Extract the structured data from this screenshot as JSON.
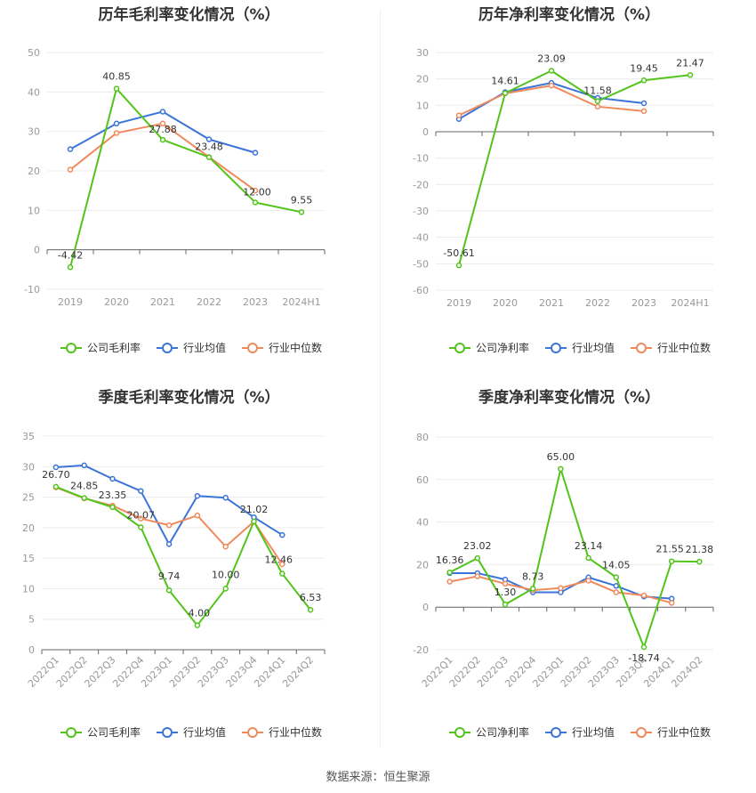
{
  "source_note": "数据来源：恒生聚源",
  "chart_data": [
    {
      "type": "line",
      "title": "历年毛利率变化情况（%）",
      "categories": [
        "2019",
        "2020",
        "2021",
        "2022",
        "2023",
        "2024H1"
      ],
      "ylim": [
        -10,
        50
      ],
      "yticks": [
        -10,
        0,
        10,
        20,
        30,
        40,
        50
      ],
      "grid": true,
      "legend_position": "bottom",
      "series": [
        {
          "name": "公司毛利率",
          "color": "#52c41a",
          "values": [
            -4.42,
            40.85,
            27.88,
            23.48,
            12.0,
            9.55
          ],
          "labels": [
            "-4.42",
            "40.85",
            "27.88",
            "23.48",
            "12.00",
            "9.55"
          ]
        },
        {
          "name": "行业均值",
          "color": "#3b74d9",
          "values": [
            25.5,
            32.0,
            35.0,
            28.0,
            24.6,
            null
          ]
        },
        {
          "name": "行业中位数",
          "color": "#f08a5d",
          "values": [
            20.3,
            29.6,
            32.0,
            23.5,
            15.0,
            null
          ]
        }
      ]
    },
    {
      "type": "line",
      "title": "历年净利率变化情况（%）",
      "categories": [
        "2019",
        "2020",
        "2021",
        "2022",
        "2023",
        "2024H1"
      ],
      "ylim": [
        -60,
        30
      ],
      "yticks": [
        -60,
        -50,
        -40,
        -30,
        -20,
        -10,
        0,
        10,
        20,
        30
      ],
      "grid": true,
      "legend_position": "bottom",
      "series": [
        {
          "name": "公司净利率",
          "color": "#52c41a",
          "values": [
            -50.61,
            14.61,
            23.09,
            11.58,
            19.45,
            21.47
          ],
          "labels": [
            "-50.61",
            "14.61",
            "23.09",
            "11.58",
            "19.45",
            "21.47"
          ]
        },
        {
          "name": "行业均值",
          "color": "#3b74d9",
          "values": [
            4.8,
            15.0,
            18.5,
            12.8,
            10.8,
            null
          ]
        },
        {
          "name": "行业中位数",
          "color": "#f08a5d",
          "values": [
            6.2,
            14.5,
            17.5,
            9.5,
            7.8,
            null
          ]
        }
      ]
    },
    {
      "type": "line",
      "title": "季度毛利率变化情况（%）",
      "categories": [
        "2022Q1",
        "2022Q2",
        "2022Q3",
        "2022Q4",
        "2023Q1",
        "2023Q2",
        "2023Q3",
        "2023Q4",
        "2024Q1",
        "2024Q2"
      ],
      "ylim": [
        0,
        35
      ],
      "yticks": [
        0,
        5,
        10,
        15,
        20,
        25,
        30,
        35
      ],
      "grid": true,
      "legend_position": "bottom",
      "series": [
        {
          "name": "公司毛利率",
          "color": "#52c41a",
          "values": [
            26.7,
            24.85,
            23.35,
            20.07,
            9.74,
            4.0,
            10.0,
            21.02,
            12.46,
            6.53
          ],
          "labels": [
            "26.70",
            "24.85",
            "23.35",
            "20.07",
            "9.74",
            "4.00",
            "10.00",
            "21.02",
            "12.46",
            "6.53"
          ]
        },
        {
          "name": "行业均值",
          "color": "#3b74d9",
          "values": [
            29.9,
            30.2,
            28.0,
            26.0,
            17.3,
            25.2,
            24.9,
            21.7,
            18.8,
            null
          ]
        },
        {
          "name": "行业中位数",
          "color": "#f08a5d",
          "values": [
            26.6,
            24.8,
            23.6,
            21.5,
            20.4,
            22.0,
            16.9,
            21.0,
            14.0,
            null
          ]
        }
      ]
    },
    {
      "type": "line",
      "title": "季度净利率变化情况（%）",
      "categories": [
        "2022Q1",
        "2022Q2",
        "2022Q3",
        "2022Q4",
        "2023Q1",
        "2023Q2",
        "2023Q3",
        "2023Q4",
        "2024Q1",
        "2024Q2"
      ],
      "ylim": [
        -20,
        80
      ],
      "yticks": [
        -20,
        0,
        20,
        40,
        60,
        80
      ],
      "grid": true,
      "legend_position": "bottom",
      "series": [
        {
          "name": "公司净利率",
          "color": "#52c41a",
          "values": [
            16.36,
            23.02,
            1.3,
            8.73,
            65.0,
            23.14,
            14.05,
            -18.74,
            21.55,
            21.38
          ],
          "labels": [
            "16.36",
            "23.02",
            "1.30",
            "8.73",
            "65.00",
            "23.14",
            "14.05",
            "-18.74",
            "21.55",
            "21.38"
          ]
        },
        {
          "name": "行业均值",
          "color": "#3b74d9",
          "values": [
            16.0,
            16.0,
            13.0,
            7.0,
            7.0,
            14.0,
            10.0,
            5.0,
            4.0,
            null
          ]
        },
        {
          "name": "行业中位数",
          "color": "#f08a5d",
          "values": [
            12.0,
            14.5,
            11.0,
            8.0,
            9.0,
            12.5,
            7.0,
            5.5,
            2.0,
            null
          ]
        }
      ]
    }
  ]
}
